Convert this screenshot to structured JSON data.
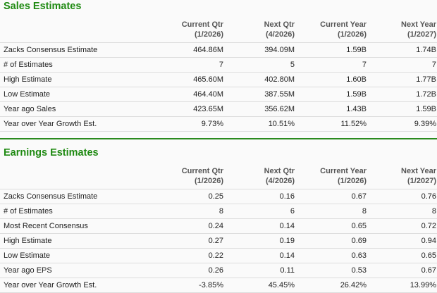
{
  "accent_color": "#1f8a12",
  "columns": [
    {
      "label": "Current Qtr",
      "period": "(1/2026)"
    },
    {
      "label": "Next Qtr",
      "period": "(4/2026)"
    },
    {
      "label": "Current Year",
      "period": "(1/2026)"
    },
    {
      "label": "Next Year",
      "period": "(1/2027)"
    }
  ],
  "sales": {
    "title": "Sales Estimates",
    "rows": [
      {
        "label": "Zacks Consensus Estimate",
        "values": [
          "464.86M",
          "394.09M",
          "1.59B",
          "1.74B"
        ]
      },
      {
        "label": "# of Estimates",
        "values": [
          "7",
          "5",
          "7",
          "7"
        ]
      },
      {
        "label": "High Estimate",
        "values": [
          "465.60M",
          "402.80M",
          "1.60B",
          "1.77B"
        ]
      },
      {
        "label": "Low Estimate",
        "values": [
          "464.40M",
          "387.55M",
          "1.59B",
          "1.72B"
        ]
      },
      {
        "label": "Year ago Sales",
        "values": [
          "423.65M",
          "356.62M",
          "1.43B",
          "1.59B"
        ]
      },
      {
        "label": "Year over Year Growth Est.",
        "values": [
          "9.73%",
          "10.51%",
          "11.52%",
          "9.39%"
        ]
      }
    ]
  },
  "earnings": {
    "title": "Earnings Estimates",
    "rows": [
      {
        "label": "Zacks Consensus Estimate",
        "values": [
          "0.25",
          "0.16",
          "0.67",
          "0.76"
        ]
      },
      {
        "label": "# of Estimates",
        "values": [
          "8",
          "6",
          "8",
          "8"
        ]
      },
      {
        "label": "Most Recent Consensus",
        "values": [
          "0.24",
          "0.14",
          "0.65",
          "0.72"
        ]
      },
      {
        "label": "High Estimate",
        "values": [
          "0.27",
          "0.19",
          "0.69",
          "0.94"
        ]
      },
      {
        "label": "Low Estimate",
        "values": [
          "0.22",
          "0.14",
          "0.63",
          "0.65"
        ]
      },
      {
        "label": "Year ago EPS",
        "values": [
          "0.26",
          "0.11",
          "0.53",
          "0.67"
        ]
      },
      {
        "label": "Year over Year Growth Est.",
        "values": [
          "-3.85%",
          "45.45%",
          "26.42%",
          "13.99%"
        ]
      }
    ]
  }
}
